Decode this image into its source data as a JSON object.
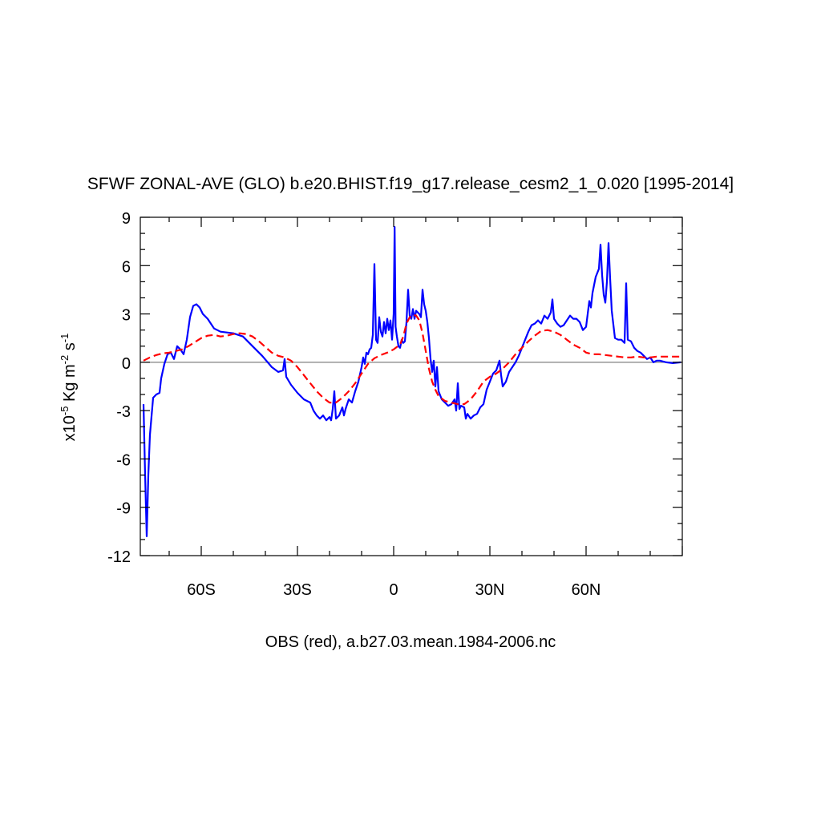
{
  "chart_data": {
    "type": "line",
    "title": "SFWF ZONAL-AVE (GLO) b.e20.BHIST.f19_g17.release_cesm2_1_0.020 [1995-2014]",
    "xlabel": "OBS (red), a.b27.03.mean.1984-2006.nc",
    "ylabel": {
      "prefix": "x10",
      "exp1": "-5",
      "mid": " Kg m",
      "exp2": "-2",
      "mid2": " s",
      "exp3": "-1"
    },
    "xlim": [
      -79,
      90
    ],
    "ylim": [
      -12,
      9
    ],
    "x_ticks": [
      {
        "value": -60,
        "label": "60S"
      },
      {
        "value": -30,
        "label": "30S"
      },
      {
        "value": 0,
        "label": "0"
      },
      {
        "value": 30,
        "label": "30N"
      },
      {
        "value": 60,
        "label": "60N"
      }
    ],
    "y_ticks": [
      {
        "value": 9,
        "label": "9"
      },
      {
        "value": 6,
        "label": "6"
      },
      {
        "value": 3,
        "label": "3"
      },
      {
        "value": 0,
        "label": "0"
      },
      {
        "value": -3,
        "label": "-3"
      },
      {
        "value": -6,
        "label": "-6"
      },
      {
        "value": -9,
        "label": "-9"
      },
      {
        "value": -12,
        "label": "-12"
      }
    ],
    "zero_line": true,
    "series": [
      {
        "color": "#0000ff",
        "style": "solid",
        "points": [
          [
            -78,
            -2.6
          ],
          [
            -77.5,
            -7
          ],
          [
            -77,
            -10.8
          ],
          [
            -76.5,
            -7
          ],
          [
            -76,
            -4.5
          ],
          [
            -75,
            -2.2
          ],
          [
            -74,
            -2.0
          ],
          [
            -73,
            -1.9
          ],
          [
            -72.5,
            -1.0
          ],
          [
            -71.5,
            -0.1
          ],
          [
            -70.5,
            0.5
          ],
          [
            -69.5,
            0.6
          ],
          [
            -68.5,
            0.2
          ],
          [
            -67.5,
            1.0
          ],
          [
            -66.5,
            0.8
          ],
          [
            -65.5,
            0.5
          ],
          [
            -64.5,
            1.4
          ],
          [
            -63.5,
            2.8
          ],
          [
            -62.5,
            3.5
          ],
          [
            -61.5,
            3.6
          ],
          [
            -60.5,
            3.4
          ],
          [
            -59.5,
            3.0
          ],
          [
            -58,
            2.7
          ],
          [
            -56,
            2.1
          ],
          [
            -54,
            1.9
          ],
          [
            -50,
            1.8
          ],
          [
            -47,
            1.6
          ],
          [
            -44,
            1.0
          ],
          [
            -41,
            0.4
          ],
          [
            -38,
            -0.3
          ],
          [
            -36,
            -0.6
          ],
          [
            -34.5,
            -0.5
          ],
          [
            -34,
            0.2
          ],
          [
            -33.5,
            -0.9
          ],
          [
            -32,
            -1.4
          ],
          [
            -30,
            -1.9
          ],
          [
            -28,
            -2.3
          ],
          [
            -26,
            -2.5
          ],
          [
            -25,
            -3.0
          ],
          [
            -24,
            -3.3
          ],
          [
            -23,
            -3.5
          ],
          [
            -22,
            -3.3
          ],
          [
            -21,
            -3.6
          ],
          [
            -20,
            -3.4
          ],
          [
            -19.5,
            -3.6
          ],
          [
            -19,
            -2.9
          ],
          [
            -18.5,
            -1.8
          ],
          [
            -18,
            -3.5
          ],
          [
            -17,
            -3.3
          ],
          [
            -16,
            -2.8
          ],
          [
            -15.5,
            -3.3
          ],
          [
            -15,
            -2.9
          ],
          [
            -14,
            -2.3
          ],
          [
            -13,
            -2.5
          ],
          [
            -12,
            -1.8
          ],
          [
            -11,
            -1.2
          ],
          [
            -10,
            -0.3
          ],
          [
            -9.5,
            0.3
          ],
          [
            -9,
            -0.1
          ],
          [
            -8.5,
            0.6
          ],
          [
            -8,
            0.5
          ],
          [
            -7.5,
            0.8
          ],
          [
            -7,
            0.9
          ],
          [
            -6.5,
            1.7
          ],
          [
            -6,
            6.1
          ],
          [
            -5.5,
            1.4
          ],
          [
            -5,
            1.2
          ],
          [
            -4.5,
            2.8
          ],
          [
            -4,
            1.9
          ],
          [
            -3.5,
            1.6
          ],
          [
            -3,
            2.5
          ],
          [
            -2.5,
            1.8
          ],
          [
            -2,
            2.7
          ],
          [
            -1.5,
            2.0
          ],
          [
            -1,
            2.6
          ],
          [
            -0.5,
            1.4
          ],
          [
            0,
            3.0
          ],
          [
            0.3,
            8.4
          ],
          [
            0.6,
            2.2
          ],
          [
            1,
            1.6
          ],
          [
            1.5,
            1.0
          ],
          [
            2,
            0.9
          ],
          [
            2.5,
            1.4
          ],
          [
            3,
            1.2
          ],
          [
            3.5,
            1.3
          ],
          [
            4,
            2.5
          ],
          [
            4.5,
            4.5
          ],
          [
            5,
            2.9
          ],
          [
            5.5,
            2.7
          ],
          [
            6,
            3.3
          ],
          [
            6.5,
            2.7
          ],
          [
            7,
            3.2
          ],
          [
            7.5,
            3.1
          ],
          [
            8,
            3.0
          ],
          [
            8.5,
            2.8
          ],
          [
            9,
            4.5
          ],
          [
            9.5,
            3.6
          ],
          [
            10,
            3.2
          ],
          [
            10.5,
            2.5
          ],
          [
            11,
            1.5
          ],
          [
            11.5,
            0.2
          ],
          [
            12,
            -0.6
          ],
          [
            12.5,
            0.1
          ],
          [
            13,
            -1.5
          ],
          [
            13.5,
            -0.3
          ],
          [
            14,
            -1.8
          ],
          [
            15,
            -2.3
          ],
          [
            16,
            -2.5
          ],
          [
            17,
            -2.7
          ],
          [
            18,
            -2.6
          ],
          [
            19,
            -2.3
          ],
          [
            19.5,
            -3.0
          ],
          [
            20,
            -1.3
          ],
          [
            20.5,
            -2.9
          ],
          [
            21,
            -2.7
          ],
          [
            22,
            -2.8
          ],
          [
            22.5,
            -3.5
          ],
          [
            23,
            -3.2
          ],
          [
            24,
            -3.5
          ],
          [
            25,
            -3.3
          ],
          [
            26,
            -3.2
          ],
          [
            27,
            -2.8
          ],
          [
            28,
            -2.6
          ],
          [
            29,
            -1.7
          ],
          [
            30,
            -1.2
          ],
          [
            31,
            -0.7
          ],
          [
            32,
            -0.5
          ],
          [
            33,
            0.1
          ],
          [
            33.5,
            -0.8
          ],
          [
            34,
            -1.5
          ],
          [
            35,
            -1.2
          ],
          [
            36,
            -0.6
          ],
          [
            37,
            -0.3
          ],
          [
            38,
            0.0
          ],
          [
            39,
            0.4
          ],
          [
            40,
            0.9
          ],
          [
            41,
            1.4
          ],
          [
            42,
            1.9
          ],
          [
            43,
            2.3
          ],
          [
            44,
            2.4
          ],
          [
            45,
            2.6
          ],
          [
            46,
            2.4
          ],
          [
            47,
            2.9
          ],
          [
            48,
            2.7
          ],
          [
            49,
            3.1
          ],
          [
            49.5,
            3.9
          ],
          [
            50,
            2.7
          ],
          [
            51,
            2.4
          ],
          [
            52,
            2.2
          ],
          [
            53,
            2.3
          ],
          [
            54,
            2.6
          ],
          [
            55,
            2.9
          ],
          [
            56,
            2.7
          ],
          [
            57,
            2.7
          ],
          [
            58,
            2.5
          ],
          [
            59,
            2.0
          ],
          [
            60,
            2.2
          ],
          [
            61,
            3.8
          ],
          [
            61.5,
            3.4
          ],
          [
            62,
            4.3
          ],
          [
            63,
            5.3
          ],
          [
            64,
            5.8
          ],
          [
            64.5,
            7.3
          ],
          [
            65,
            5.4
          ],
          [
            65.5,
            4.2
          ],
          [
            66,
            3.7
          ],
          [
            66.5,
            5.0
          ],
          [
            67,
            7.4
          ],
          [
            67.5,
            5.2
          ],
          [
            68,
            3.2
          ],
          [
            69,
            1.5
          ],
          [
            70,
            1.4
          ],
          [
            71,
            1.4
          ],
          [
            72,
            1.2
          ],
          [
            72.5,
            4.9
          ],
          [
            73,
            1.4
          ],
          [
            74,
            1.3
          ],
          [
            75,
            0.9
          ],
          [
            76,
            0.7
          ],
          [
            77,
            0.6
          ],
          [
            78,
            0.4
          ],
          [
            79,
            0.2
          ],
          [
            80,
            0.3
          ],
          [
            81,
            0.0
          ],
          [
            82,
            0.1
          ],
          [
            83,
            0.1
          ],
          [
            85,
            0.0
          ],
          [
            87,
            -0.05
          ],
          [
            89.5,
            0.0
          ]
        ]
      },
      {
        "color": "#ff0000",
        "style": "dashed",
        "points": [
          [
            -78,
            0.1
          ],
          [
            -76,
            0.3
          ],
          [
            -74,
            0.45
          ],
          [
            -72,
            0.55
          ],
          [
            -70,
            0.6
          ],
          [
            -68,
            0.7
          ],
          [
            -66,
            0.8
          ],
          [
            -64,
            1.0
          ],
          [
            -62,
            1.25
          ],
          [
            -60,
            1.5
          ],
          [
            -58,
            1.65
          ],
          [
            -56,
            1.7
          ],
          [
            -54,
            1.6
          ],
          [
            -52,
            1.65
          ],
          [
            -50,
            1.75
          ],
          [
            -48,
            1.8
          ],
          [
            -46,
            1.75
          ],
          [
            -44,
            1.6
          ],
          [
            -42,
            1.3
          ],
          [
            -40,
            0.95
          ],
          [
            -38,
            0.6
          ],
          [
            -36,
            0.4
          ],
          [
            -34,
            0.3
          ],
          [
            -32,
            0.1
          ],
          [
            -30,
            -0.3
          ],
          [
            -28,
            -0.8
          ],
          [
            -26,
            -1.3
          ],
          [
            -24,
            -1.8
          ],
          [
            -22,
            -2.2
          ],
          [
            -20,
            -2.5
          ],
          [
            -18,
            -2.5
          ],
          [
            -16,
            -2.2
          ],
          [
            -14,
            -1.8
          ],
          [
            -12,
            -1.3
          ],
          [
            -10,
            -0.7
          ],
          [
            -8,
            -0.1
          ],
          [
            -6,
            0.25
          ],
          [
            -4,
            0.45
          ],
          [
            -2,
            0.6
          ],
          [
            0,
            0.8
          ],
          [
            2,
            1.1
          ],
          [
            3,
            1.6
          ],
          [
            4,
            2.4
          ],
          [
            5,
            2.8
          ],
          [
            6,
            2.95
          ],
          [
            7,
            2.9
          ],
          [
            8,
            2.6
          ],
          [
            9,
            1.8
          ],
          [
            10,
            0.7
          ],
          [
            11,
            -0.4
          ],
          [
            12,
            -1.2
          ],
          [
            13,
            -1.7
          ],
          [
            14,
            -2.1
          ],
          [
            16,
            -2.4
          ],
          [
            18,
            -2.5
          ],
          [
            20,
            -2.6
          ],
          [
            22,
            -2.6
          ],
          [
            24,
            -2.3
          ],
          [
            26,
            -1.8
          ],
          [
            28,
            -1.2
          ],
          [
            30,
            -0.9
          ],
          [
            32,
            -0.7
          ],
          [
            34,
            -0.4
          ],
          [
            36,
            0.0
          ],
          [
            38,
            0.5
          ],
          [
            40,
            0.9
          ],
          [
            42,
            1.3
          ],
          [
            44,
            1.65
          ],
          [
            46,
            1.95
          ],
          [
            48,
            2.0
          ],
          [
            50,
            1.9
          ],
          [
            52,
            1.7
          ],
          [
            54,
            1.4
          ],
          [
            56,
            1.1
          ],
          [
            58,
            0.9
          ],
          [
            60,
            0.6
          ],
          [
            62,
            0.5
          ],
          [
            64,
            0.5
          ],
          [
            66,
            0.45
          ],
          [
            68,
            0.4
          ],
          [
            70,
            0.35
          ],
          [
            72,
            0.3
          ],
          [
            74,
            0.3
          ],
          [
            76,
            0.35
          ],
          [
            78,
            0.3
          ],
          [
            80,
            0.3
          ],
          [
            82,
            0.35
          ],
          [
            84,
            0.35
          ],
          [
            86,
            0.35
          ],
          [
            88,
            0.35
          ],
          [
            89.5,
            0.35
          ]
        ]
      }
    ]
  }
}
